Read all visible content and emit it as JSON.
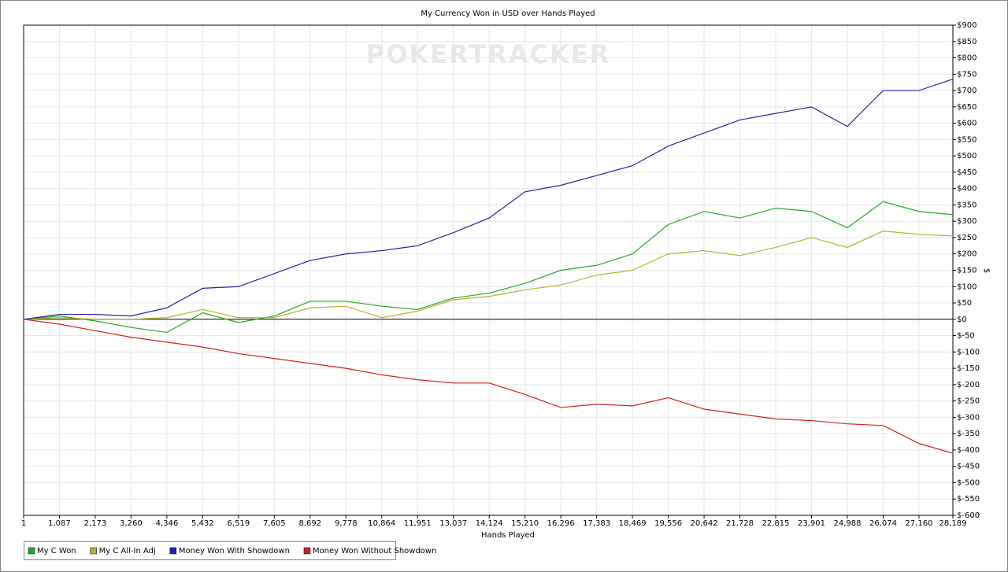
{
  "chart_data": {
    "type": "line",
    "title": "My Currency Won in USD over Hands Played",
    "watermark": "POKERTRACKER",
    "x_label": "Hands Played",
    "y_label": "$",
    "x": [
      1,
      1087,
      2173,
      3260,
      4346,
      5432,
      6519,
      7605,
      8692,
      9778,
      10864,
      11951,
      13037,
      14124,
      15210,
      16296,
      17383,
      18469,
      19556,
      20642,
      21728,
      22815,
      23901,
      24988,
      26074,
      27160,
      28189
    ],
    "series": [
      {
        "name": "My C Won",
        "color": "#22aa22",
        "values": [
          0,
          10,
          -5,
          -25,
          -40,
          20,
          -10,
          10,
          55,
          55,
          40,
          30,
          65,
          80,
          110,
          150,
          165,
          200,
          290,
          330,
          310,
          340,
          330,
          280,
          360,
          330,
          320
        ]
      },
      {
        "name": "My C All-In Adj",
        "color": "#b8b030",
        "values": [
          0,
          5,
          0,
          0,
          5,
          30,
          5,
          5,
          35,
          40,
          5,
          25,
          60,
          70,
          90,
          105,
          135,
          150,
          200,
          210,
          195,
          220,
          250,
          220,
          270,
          260,
          255
        ]
      },
      {
        "name": "Money Won With Showdown",
        "color": "#2222aa",
        "values": [
          0,
          15,
          15,
          10,
          35,
          95,
          100,
          140,
          180,
          200,
          210,
          225,
          265,
          310,
          390,
          410,
          440,
          470,
          530,
          570,
          610,
          630,
          650,
          590,
          700,
          700,
          735
        ]
      },
      {
        "name": "Money Won Without Showdown",
        "color": "#cc2222",
        "values": [
          0,
          -15,
          -35,
          -55,
          -70,
          -85,
          -105,
          -120,
          -135,
          -150,
          -170,
          -185,
          -195,
          -195,
          -230,
          -270,
          -260,
          -265,
          -240,
          -275,
          -290,
          -305,
          -310,
          -320,
          -325,
          -380,
          -410
        ]
      }
    ],
    "xlim": [
      1,
      28189
    ],
    "xticks": [
      1,
      {
        "value": 1087,
        "label": "1,087"
      },
      {
        "value": 2173,
        "label": "2,173"
      },
      {
        "value": 3260,
        "label": "3,260"
      },
      {
        "value": 4346,
        "label": "4,346"
      },
      {
        "value": 5432,
        "label": "5,432"
      },
      {
        "value": 6519,
        "label": "6,519"
      },
      {
        "value": 7605,
        "label": "7,605"
      },
      {
        "value": 8692,
        "label": "8,692"
      },
      {
        "value": 9778,
        "label": "9,778"
      },
      {
        "value": 10864,
        "label": "10,864"
      },
      {
        "value": 11951,
        "label": "11,951"
      },
      {
        "value": 13037,
        "label": "13,037"
      },
      {
        "value": 14124,
        "label": "14,124"
      },
      {
        "value": 15210,
        "label": "15,210"
      },
      {
        "value": 16296,
        "label": "16,296"
      },
      {
        "value": 17383,
        "label": "17,383"
      },
      {
        "value": 18469,
        "label": "18,469"
      },
      {
        "value": 19556,
        "label": "19,556"
      },
      {
        "value": 20642,
        "label": "20,642"
      },
      {
        "value": 21728,
        "label": "21,728"
      },
      {
        "value": 22815,
        "label": "22,815"
      },
      {
        "value": 23901,
        "label": "23,901"
      },
      {
        "value": 24988,
        "label": "24,988"
      },
      {
        "value": 26074,
        "label": "26,074"
      },
      {
        "value": 27160,
        "label": "27,160"
      },
      {
        "value": 28189,
        "label": "28,189"
      }
    ],
    "ylim": [
      -600,
      900
    ],
    "yticks": [
      {
        "value": 900,
        "label": "$900"
      },
      {
        "value": 850,
        "label": "$850"
      },
      {
        "value": 800,
        "label": "$800"
      },
      {
        "value": 750,
        "label": "$750"
      },
      {
        "value": 700,
        "label": "$700"
      },
      {
        "value": 650,
        "label": "$650"
      },
      {
        "value": 600,
        "label": "$600"
      },
      {
        "value": 550,
        "label": "$550"
      },
      {
        "value": 500,
        "label": "$500"
      },
      {
        "value": 450,
        "label": "$450"
      },
      {
        "value": 400,
        "label": "$400"
      },
      {
        "value": 350,
        "label": "$350"
      },
      {
        "value": 300,
        "label": "$300"
      },
      {
        "value": 250,
        "label": "$250"
      },
      {
        "value": 200,
        "label": "$200"
      },
      {
        "value": 150,
        "label": "$150"
      },
      {
        "value": 100,
        "label": "$100"
      },
      {
        "value": 50,
        "label": "$50"
      },
      {
        "value": 0,
        "label": "$0"
      },
      {
        "value": -50,
        "label": "$-50"
      },
      {
        "value": -100,
        "label": "$-100"
      },
      {
        "value": -150,
        "label": "$-150"
      },
      {
        "value": -200,
        "label": "$-200"
      },
      {
        "value": -250,
        "label": "$-250"
      },
      {
        "value": -300,
        "label": "$-300"
      },
      {
        "value": -350,
        "label": "$-350"
      },
      {
        "value": -400,
        "label": "$-400"
      },
      {
        "value": -450,
        "label": "$-450"
      },
      {
        "value": -500,
        "label": "$-500"
      },
      {
        "value": -550,
        "label": "$-550"
      },
      {
        "value": -600,
        "label": "$-600"
      }
    ],
    "grid": true
  }
}
